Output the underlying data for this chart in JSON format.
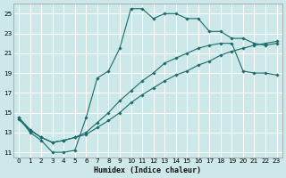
{
  "xlabel": "Humidex (Indice chaleur)",
  "bg_color": "#cce8e8",
  "grid_color": "#ffffff",
  "line_color": "#1a6b6b",
  "xlim": [
    -0.5,
    23.5
  ],
  "ylim": [
    10.5,
    26.0
  ],
  "yticks": [
    11,
    13,
    15,
    17,
    19,
    21,
    23,
    25
  ],
  "xticks": [
    0,
    1,
    2,
    3,
    4,
    5,
    6,
    7,
    8,
    9,
    10,
    11,
    12,
    13,
    14,
    15,
    16,
    17,
    18,
    19,
    20,
    21,
    22,
    23
  ],
  "line1_x": [
    0,
    1,
    2,
    3,
    4,
    5,
    6,
    7,
    8,
    9,
    10,
    11,
    12,
    13,
    14,
    15,
    16,
    17,
    18,
    19,
    20,
    21,
    22,
    23
  ],
  "line1_y": [
    14.5,
    13.0,
    12.2,
    11.0,
    11.0,
    11.2,
    14.5,
    18.5,
    19.2,
    21.5,
    25.5,
    25.5,
    24.5,
    25.0,
    25.0,
    24.5,
    24.5,
    23.2,
    23.2,
    22.5,
    22.5,
    22.0,
    21.8,
    22.0
  ],
  "line2_x": [
    0,
    1,
    2,
    3,
    4,
    5,
    6,
    7,
    8,
    9,
    10,
    11,
    12,
    13,
    14,
    15,
    16,
    17,
    18,
    19,
    20,
    21,
    22,
    23
  ],
  "line2_y": [
    14.5,
    13.3,
    12.5,
    12.0,
    12.2,
    12.5,
    13.0,
    14.0,
    15.0,
    16.2,
    17.2,
    18.2,
    19.0,
    20.0,
    20.5,
    21.0,
    21.5,
    21.8,
    22.0,
    22.0,
    19.2,
    19.0,
    19.0,
    18.8
  ],
  "line3_x": [
    0,
    1,
    2,
    3,
    4,
    5,
    6,
    7,
    8,
    9,
    10,
    11,
    12,
    13,
    14,
    15,
    16,
    17,
    18,
    19,
    20,
    21,
    22,
    23
  ],
  "line3_y": [
    14.3,
    13.2,
    12.5,
    12.0,
    12.2,
    12.5,
    12.8,
    13.5,
    14.2,
    15.0,
    16.0,
    16.8,
    17.5,
    18.2,
    18.8,
    19.2,
    19.8,
    20.2,
    20.8,
    21.2,
    21.5,
    21.8,
    22.0,
    22.2
  ]
}
